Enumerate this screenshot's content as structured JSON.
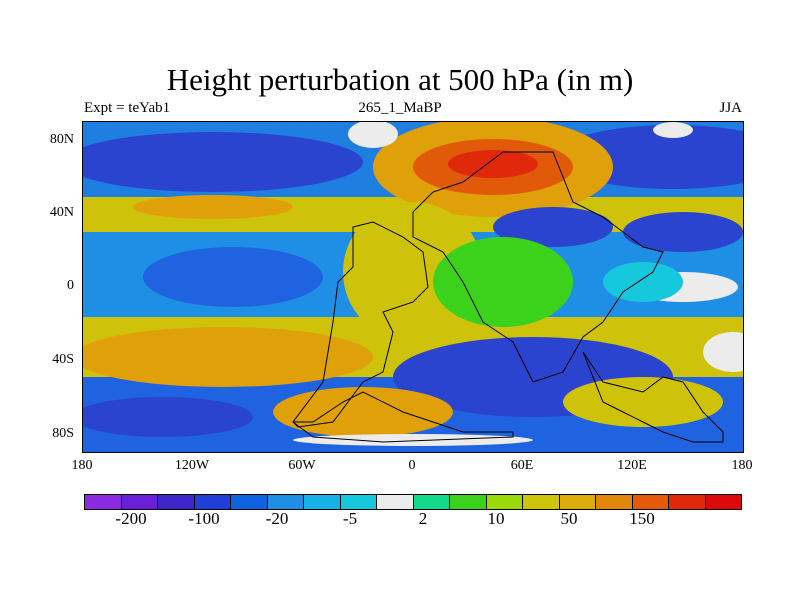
{
  "header": {
    "title": "Height perturbation at 500 hPa (in m)",
    "left": "Expt = teYab1",
    "center": "265_1_MaBP",
    "right": "JJA"
  },
  "y_ticks": [
    "80N",
    "40N",
    "0",
    "40S",
    "80S"
  ],
  "x_ticks": [
    "180",
    "120W",
    "60W",
    "0",
    "60E",
    "120E",
    "180"
  ],
  "colorbar": {
    "colors": [
      "#8a2be2",
      "#6a1fd8",
      "#3f25cc",
      "#1f3fd8",
      "#0f63e0",
      "#1f8fe6",
      "#16b1e6",
      "#16c8dc",
      "#ececec",
      "#12d98c",
      "#3cd21c",
      "#9bd80c",
      "#cfc20a",
      "#dcac0a",
      "#e0860a",
      "#e45a0a",
      "#e0280a",
      "#dc0a0a"
    ],
    "labels": [
      "-200",
      "-100",
      "-20",
      "-5",
      "2",
      "10",
      "50",
      "150"
    ]
  }
}
